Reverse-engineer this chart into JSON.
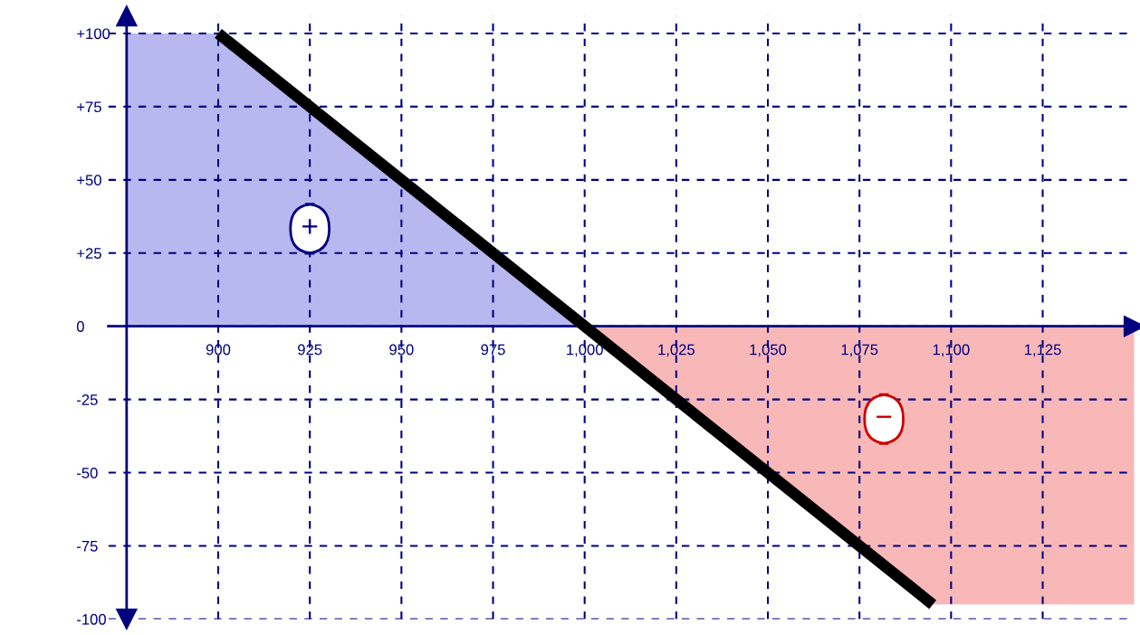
{
  "chart_data": {
    "type": "line",
    "series": [
      {
        "type": "area",
        "color": "#b8b8f0",
        "x": [
          875,
          900,
          1000
        ],
        "values": [
          100,
          100,
          0
        ]
      },
      {
        "type": "area",
        "color": "#f8b8b8",
        "x": [
          1000,
          1095,
          1150
        ],
        "values": [
          0,
          -95,
          -95
        ]
      },
      {
        "color": "#000000",
        "x": [
          900,
          1095
        ],
        "values": [
          100,
          -95
        ]
      }
    ],
    "annotations": [
      "+",
      "−"
    ],
    "xlim": [
      870,
      1150
    ],
    "ylim": [
      -100,
      106
    ],
    "xticks": [
      {
        "value": 900,
        "label": "900"
      },
      {
        "value": 925,
        "label": "925"
      },
      {
        "value": 950,
        "label": "950"
      },
      {
        "value": 975,
        "label": "975"
      },
      {
        "value": 1000,
        "label": "1,000"
      },
      {
        "value": 1025,
        "label": "1,025"
      },
      {
        "value": 1050,
        "label": "1,050"
      },
      {
        "value": 1075,
        "label": "1,075"
      },
      {
        "value": 1100,
        "label": "1,100"
      },
      {
        "value": 1125,
        "label": "1,125"
      }
    ],
    "yticks": [
      {
        "value": -100,
        "label": "-100"
      },
      {
        "value": -75,
        "label": "-75"
      },
      {
        "value": -50,
        "label": "-50"
      },
      {
        "value": -25,
        "label": "-25"
      },
      0,
      {
        "value": 25,
        "label": "+25"
      },
      {
        "value": 50,
        "label": "+50"
      },
      {
        "value": 75,
        "label": "+75"
      },
      {
        "value": 100,
        "label": "+100"
      }
    ],
    "grid": true,
    "line_style": "solid"
  }
}
